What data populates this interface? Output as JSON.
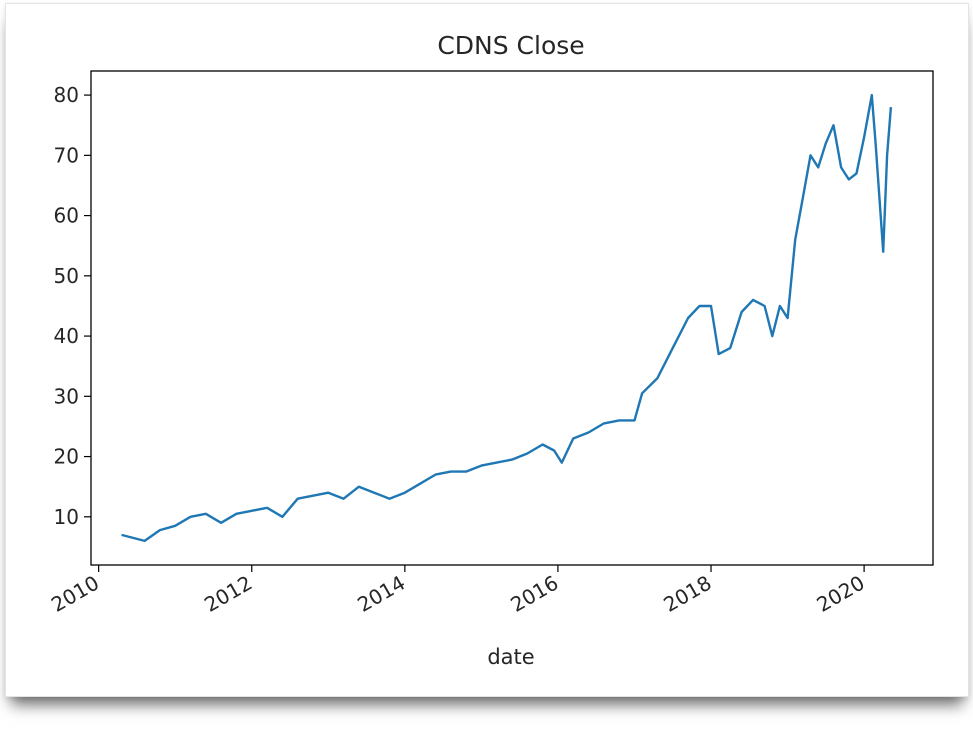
{
  "chart_data": {
    "type": "line",
    "title": "CDNS Close",
    "xlabel": "date",
    "ylabel": "",
    "x_ticks": [
      "2010",
      "2012",
      "2014",
      "2016",
      "2018",
      "2020"
    ],
    "y_ticks": [
      10,
      20,
      30,
      40,
      50,
      60,
      70,
      80
    ],
    "xlim": [
      2009.9,
      2020.9
    ],
    "ylim": [
      2,
      84
    ],
    "grid": false,
    "line_color": "#1f77b4",
    "series": [
      {
        "x": [
          2010.3,
          2010.45,
          2010.6,
          2010.8,
          2011.0,
          2011.2,
          2011.4,
          2011.6,
          2011.8,
          2012.0,
          2012.2,
          2012.4,
          2012.6,
          2012.8,
          2013.0,
          2013.2,
          2013.4,
          2013.6,
          2013.8,
          2014.0,
          2014.2,
          2014.4,
          2014.6,
          2014.8,
          2015.0,
          2015.2,
          2015.4,
          2015.6,
          2015.8,
          2015.95,
          2016.05,
          2016.2,
          2016.4,
          2016.6,
          2016.8,
          2017.0,
          2017.1,
          2017.3,
          2017.5,
          2017.7,
          2017.85,
          2018.0,
          2018.1,
          2018.25,
          2018.4,
          2018.55,
          2018.7,
          2018.8,
          2018.9,
          2019.0,
          2019.1,
          2019.2,
          2019.3,
          2019.4,
          2019.5,
          2019.6,
          2019.7,
          2019.8,
          2019.9,
          2020.0,
          2020.1,
          2020.15,
          2020.25,
          2020.3,
          2020.35
        ],
        "values": [
          7,
          6.5,
          6,
          7.8,
          8.5,
          10,
          10.5,
          9,
          10.5,
          11,
          11.5,
          10,
          13,
          13.5,
          14,
          13,
          15,
          14,
          13,
          14,
          15.5,
          17,
          17.5,
          17.5,
          18.5,
          19,
          19.5,
          20.5,
          22,
          21,
          19,
          23,
          24,
          25.5,
          26,
          26,
          30.5,
          33,
          38,
          43,
          45,
          45,
          37,
          38,
          44,
          46,
          45,
          40,
          45,
          43,
          56,
          63,
          70,
          68,
          72,
          75,
          68,
          66,
          67,
          73,
          80,
          72,
          54,
          70,
          78
        ]
      }
    ]
  }
}
